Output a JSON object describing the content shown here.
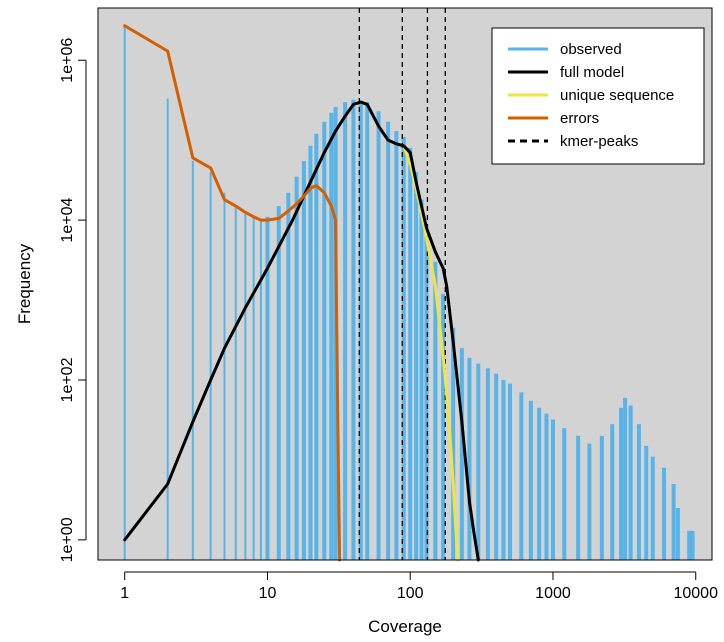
{
  "chart_data": {
    "type": "bar",
    "xlabel": "Coverage",
    "ylabel": "Frequency",
    "x_scale": "log",
    "y_scale": "log",
    "xlim": [
      0.65,
      13000
    ],
    "ylim": [
      0.56,
      4500000
    ],
    "background": "#d3d3d3",
    "grid": false,
    "x_ticks": [
      {
        "value": 1,
        "label": "1"
      },
      {
        "value": 10,
        "label": "10"
      },
      {
        "value": 100,
        "label": "100"
      },
      {
        "value": 1000,
        "label": "1000"
      },
      {
        "value": 10000,
        "label": "10000"
      }
    ],
    "y_ticks": [
      {
        "value": 1,
        "label": "1e+00"
      },
      {
        "value": 100,
        "label": "1e+02"
      },
      {
        "value": 10000,
        "label": "1e+04"
      },
      {
        "value": 1000000,
        "label": "1e+06"
      }
    ],
    "legend": {
      "position": "top-right",
      "entries": [
        {
          "label": "observed",
          "color": "#56b4e9",
          "style": "solid"
        },
        {
          "label": "full model",
          "color": "#000000",
          "style": "solid"
        },
        {
          "label": "unique sequence",
          "color": "#f0e442",
          "style": "solid"
        },
        {
          "label": "errors",
          "color": "#d55e00",
          "style": "solid"
        },
        {
          "label": "kmer-peaks",
          "color": "#000000",
          "style": "dashed"
        }
      ]
    },
    "observed": {
      "name": "observed",
      "color": "#56b4e9",
      "x": [
        1,
        2,
        3,
        4,
        5,
        6,
        7,
        8,
        9,
        10,
        12,
        14,
        16,
        18,
        20,
        22,
        25,
        28,
        30,
        35,
        40,
        45,
        50,
        60,
        70,
        80,
        90,
        100,
        110,
        120,
        130,
        150,
        170,
        200,
        230,
        260,
        300,
        350,
        400,
        450,
        500,
        600,
        700,
        800,
        900,
        1000,
        1200,
        1500,
        1800,
        2200,
        2600,
        3000,
        3200,
        3500,
        4000,
        4500,
        5000,
        6000,
        7000,
        7500,
        9000,
        9500
      ],
      "y": [
        2700000,
        330000,
        55000,
        40000,
        22000,
        15000,
        12000,
        11000,
        10500,
        11000,
        15000,
        22000,
        35000,
        55000,
        85000,
        120000,
        170000,
        220000,
        260000,
        300000,
        320000,
        310000,
        300000,
        230000,
        170000,
        130000,
        110000,
        80000,
        40000,
        18000,
        8000,
        3000,
        1200,
        450,
        250,
        190,
        160,
        140,
        120,
        100,
        90,
        70,
        55,
        45,
        38,
        32,
        25,
        20,
        16,
        20,
        28,
        45,
        60,
        48,
        28,
        15,
        11,
        8,
        5,
        2.5,
        1.3,
        1.3
      ]
    },
    "full_model": {
      "name": "full model",
      "color": "#000000",
      "x": [
        1,
        2,
        3,
        4,
        5,
        7,
        10,
        15,
        20,
        25,
        30,
        35,
        40,
        45,
        50,
        60,
        70,
        80,
        90,
        100,
        110,
        120,
        130,
        150,
        170,
        180,
        200,
        230,
        260,
        280,
        300
      ],
      "y": [
        1,
        5,
        30,
        100,
        250,
        800,
        2500,
        10000,
        30000,
        70000,
        130000,
        200000,
        280000,
        300000,
        280000,
        150000,
        100000,
        90000,
        85000,
        70000,
        30000,
        15000,
        8000,
        4000,
        2500,
        1500,
        300,
        30,
        3,
        1.2,
        0.5
      ]
    },
    "unique_sequence": {
      "name": "unique sequence",
      "color": "#f0e442",
      "x": [
        90,
        100,
        110,
        120,
        130,
        150,
        170,
        185,
        200,
        215
      ],
      "y": [
        85000,
        50000,
        25000,
        12000,
        6000,
        1500,
        200,
        40,
        5,
        0.5
      ]
    },
    "errors": {
      "name": "errors",
      "color": "#d55e00",
      "x": [
        1,
        2,
        3,
        4,
        5,
        6,
        7,
        8,
        9,
        10,
        12,
        14,
        16,
        18,
        20,
        22,
        25,
        28,
        30,
        31,
        32
      ],
      "y": [
        2700000,
        1300000,
        60000,
        45000,
        18000,
        15000,
        12500,
        11000,
        10000,
        10000,
        10500,
        13000,
        16000,
        20000,
        25000,
        27000,
        22000,
        15000,
        10000,
        50,
        0.5
      ]
    },
    "kmer_peaks": {
      "name": "kmer-peaks",
      "color": "#000000",
      "x": [
        44,
        88,
        132,
        176
      ]
    }
  }
}
